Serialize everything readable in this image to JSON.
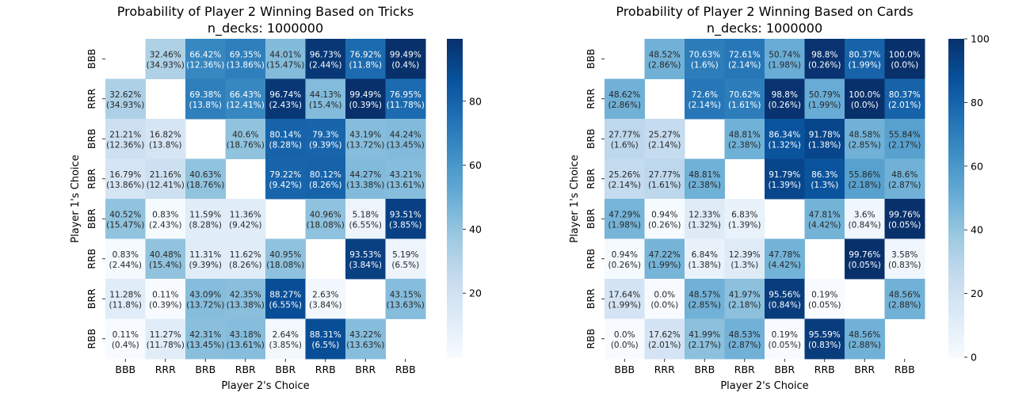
{
  "chart_data": [
    {
      "type": "heatmap",
      "title": "Probability of Player 2 Winning Based on Tricks",
      "subtitle": "n_decks: 1000000",
      "xlabel": "Player 2's Choice",
      "ylabel": "Player 1's Choice",
      "x_categories": [
        "BBB",
        "RRR",
        "BRB",
        "RBR",
        "BBR",
        "RRB",
        "BRR",
        "RBB"
      ],
      "y_categories": [
        "BBB",
        "RRR",
        "BRB",
        "RBR",
        "BBR",
        "RRB",
        "BRR",
        "RBB"
      ],
      "colormap": "Blues",
      "colorbar_range": [
        0,
        99.49
      ],
      "colorbar_ticks": [
        20,
        40,
        60,
        80
      ],
      "values": [
        [
          null,
          32.46,
          66.42,
          69.35,
          44.01,
          96.73,
          76.92,
          99.49
        ],
        [
          32.62,
          null,
          69.38,
          66.43,
          96.74,
          44.13,
          99.49,
          76.95
        ],
        [
          21.21,
          16.82,
          null,
          40.6,
          80.14,
          79.3,
          43.19,
          44.24
        ],
        [
          16.79,
          21.16,
          40.63,
          null,
          79.22,
          80.12,
          44.27,
          43.21
        ],
        [
          40.52,
          0.83,
          11.59,
          11.36,
          null,
          40.96,
          5.18,
          93.51
        ],
        [
          0.83,
          40.48,
          11.31,
          11.62,
          40.95,
          null,
          93.53,
          5.19
        ],
        [
          11.28,
          0.11,
          43.09,
          42.35,
          88.27,
          2.63,
          null,
          43.15
        ],
        [
          0.11,
          11.27,
          42.31,
          43.18,
          2.64,
          88.31,
          43.22,
          null
        ]
      ],
      "annotations": [
        [
          null,
          "32.46%\n(34.93%)",
          "66.42%\n(12.36%)",
          "69.35%\n(13.86%)",
          "44.01%\n(15.47%)",
          "96.73%\n(2.44%)",
          "76.92%\n(11.8%)",
          "99.49%\n(0.4%)"
        ],
        [
          "32.62%\n(34.93%)",
          null,
          "69.38%\n(13.8%)",
          "66.43%\n(12.41%)",
          "96.74%\n(2.43%)",
          "44.13%\n(15.4%)",
          "99.49%\n(0.39%)",
          "76.95%\n(11.78%)"
        ],
        [
          "21.21%\n(12.36%)",
          "16.82%\n(13.8%)",
          null,
          "40.6%\n(18.76%)",
          "80.14%\n(8.28%)",
          "79.3%\n(9.39%)",
          "43.19%\n(13.72%)",
          "44.24%\n(13.45%)"
        ],
        [
          "16.79%\n(13.86%)",
          "21.16%\n(12.41%)",
          "40.63%\n(18.76%)",
          null,
          "79.22%\n(9.42%)",
          "80.12%\n(8.26%)",
          "44.27%\n(13.38%)",
          "43.21%\n(13.61%)"
        ],
        [
          "40.52%\n(15.47%)",
          "0.83%\n(2.43%)",
          "11.59%\n(8.28%)",
          "11.36%\n(9.42%)",
          null,
          "40.96%\n(18.08%)",
          "5.18%\n(6.55%)",
          "93.51%\n(3.85%)"
        ],
        [
          "0.83%\n(2.44%)",
          "40.48%\n(15.4%)",
          "11.31%\n(9.39%)",
          "11.62%\n(8.26%)",
          "40.95%\n(18.08%)",
          null,
          "93.53%\n(3.84%)",
          "5.19%\n(6.5%)"
        ],
        [
          "11.28%\n(11.8%)",
          "0.11%\n(0.39%)",
          "43.09%\n(13.72%)",
          "42.35%\n(13.38%)",
          "88.27%\n(6.55%)",
          "2.63%\n(3.84%)",
          null,
          "43.15%\n(13.63%)"
        ],
        [
          "0.11%\n(0.4%)",
          "11.27%\n(11.78%)",
          "42.31%\n(13.45%)",
          "43.18%\n(13.61%)",
          "2.64%\n(3.85%)",
          "88.31%\n(6.5%)",
          "43.22%\n(13.63%)",
          null
        ]
      ]
    },
    {
      "type": "heatmap",
      "title": "Probability of Player 2 Winning Based on Cards",
      "subtitle": "n_decks: 1000000",
      "xlabel": "Player 2's Choice",
      "ylabel": "Player 1's Choice",
      "x_categories": [
        "BBB",
        "RRR",
        "BRB",
        "RBR",
        "BBR",
        "RRB",
        "BRR",
        "RBB"
      ],
      "y_categories": [
        "BBB",
        "RRR",
        "BRB",
        "RBR",
        "BBR",
        "RRB",
        "BRR",
        "RBB"
      ],
      "colormap": "Blues",
      "colorbar_range": [
        0,
        100
      ],
      "colorbar_ticks": [
        0,
        20,
        40,
        60,
        80,
        100
      ],
      "values": [
        [
          null,
          48.52,
          70.63,
          72.61,
          50.74,
          98.8,
          80.37,
          100.0
        ],
        [
          48.62,
          null,
          72.6,
          70.62,
          98.8,
          50.79,
          100.0,
          80.37
        ],
        [
          27.77,
          25.27,
          null,
          48.81,
          86.34,
          91.78,
          48.58,
          55.84
        ],
        [
          25.26,
          27.77,
          48.81,
          null,
          91.79,
          86.3,
          55.86,
          48.6
        ],
        [
          47.29,
          0.94,
          12.33,
          6.83,
          null,
          47.81,
          3.6,
          99.76
        ],
        [
          0.94,
          47.22,
          6.84,
          12.39,
          47.78,
          null,
          99.76,
          3.58
        ],
        [
          17.64,
          0.0,
          48.57,
          41.97,
          95.56,
          0.19,
          null,
          48.56
        ],
        [
          0.0,
          17.62,
          41.99,
          48.53,
          0.19,
          95.59,
          48.56,
          null
        ]
      ],
      "annotations": [
        [
          null,
          "48.52%\n(2.86%)",
          "70.63%\n(1.6%)",
          "72.61%\n(2.14%)",
          "50.74%\n(1.98%)",
          "98.8%\n(0.26%)",
          "80.37%\n(1.99%)",
          "100.0%\n(0.0%)"
        ],
        [
          "48.62%\n(2.86%)",
          null,
          "72.6%\n(2.14%)",
          "70.62%\n(1.61%)",
          "98.8%\n(0.26%)",
          "50.79%\n(1.99%)",
          "100.0%\n(0.0%)",
          "80.37%\n(2.01%)"
        ],
        [
          "27.77%\n(1.6%)",
          "25.27%\n(2.14%)",
          null,
          "48.81%\n(2.38%)",
          "86.34%\n(1.32%)",
          "91.78%\n(1.38%)",
          "48.58%\n(2.85%)",
          "55.84%\n(2.17%)"
        ],
        [
          "25.26%\n(2.14%)",
          "27.77%\n(1.61%)",
          "48.81%\n(2.38%)",
          null,
          "91.79%\n(1.39%)",
          "86.3%\n(1.3%)",
          "55.86%\n(2.18%)",
          "48.6%\n(2.87%)"
        ],
        [
          "47.29%\n(1.98%)",
          "0.94%\n(0.26%)",
          "12.33%\n(1.32%)",
          "6.83%\n(1.39%)",
          null,
          "47.81%\n(4.42%)",
          "3.6%\n(0.84%)",
          "99.76%\n(0.05%)"
        ],
        [
          "0.94%\n(0.26%)",
          "47.22%\n(1.99%)",
          "6.84%\n(1.38%)",
          "12.39%\n(1.3%)",
          "47.78%\n(4.42%)",
          null,
          "99.76%\n(0.05%)",
          "3.58%\n(0.83%)"
        ],
        [
          "17.64%\n(1.99%)",
          "0.0%\n(0.0%)",
          "48.57%\n(2.85%)",
          "41.97%\n(2.18%)",
          "95.56%\n(0.84%)",
          "0.19%\n(0.05%)",
          null,
          "48.56%\n(2.88%)"
        ],
        [
          "0.0%\n(0.0%)",
          "17.62%\n(2.01%)",
          "41.99%\n(2.17%)",
          "48.53%\n(2.87%)",
          "0.19%\n(0.05%)",
          "95.59%\n(0.83%)",
          "48.56%\n(2.88%)",
          null
        ]
      ]
    }
  ]
}
